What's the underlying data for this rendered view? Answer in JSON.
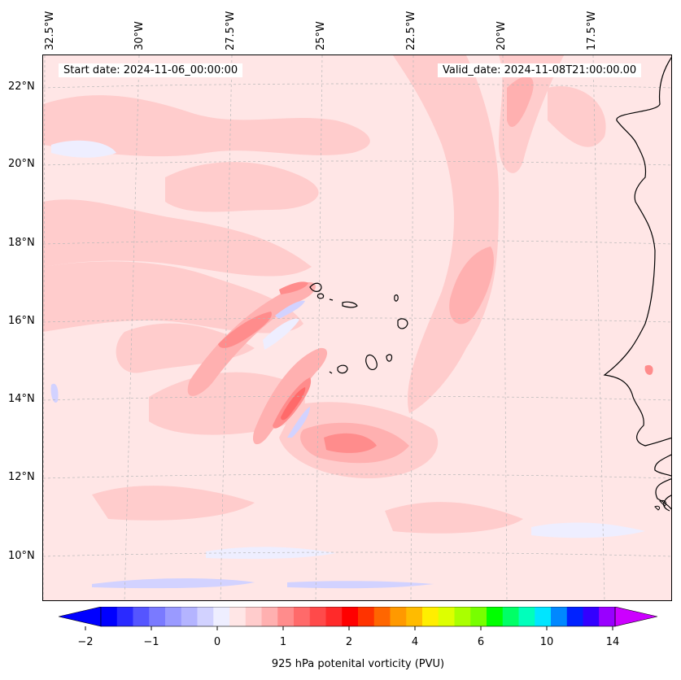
{
  "start_date": "Start date: 2024-11-06_00:00:00",
  "valid_date": "Valid_date: 2024-11-08T21:00:00.00",
  "lon_labels": [
    "32.5°W",
    "30°W",
    "27.5°W",
    "25°W",
    "22.5°W",
    "20°W",
    "17.5°W"
  ],
  "lat_labels": [
    "22°N",
    "20°N",
    "18°N",
    "16°N",
    "14°N",
    "12°N",
    "10°N"
  ],
  "colorbar": {
    "label": "925 hPa potenital vorticity (PVU)",
    "ticks": [
      "−2",
      "−1",
      "0",
      "1",
      "2",
      "4",
      "6",
      "10",
      "14"
    ],
    "colors": [
      "#0000ff",
      "#2a2aff",
      "#5555ff",
      "#7a7aff",
      "#9a9aff",
      "#b4b4ff",
      "#d2d2ff",
      "#eeeeff",
      "#ffe6e6",
      "#ffcccc",
      "#ffb0b0",
      "#ff8c8c",
      "#ff6a6a",
      "#ff4a4a",
      "#ff2a2a",
      "#ff0000",
      "#ff3300",
      "#ff6600",
      "#ff9900",
      "#ffbb00",
      "#ffee00",
      "#ddff00",
      "#aaff00",
      "#77ff00",
      "#00ff00",
      "#00ff66",
      "#00ffbb",
      "#00e5ff",
      "#0088ff",
      "#0022ff",
      "#3300ff",
      "#9900ff"
    ],
    "under_color": "#0000ff",
    "over_color": "#cc00ff"
  }
}
